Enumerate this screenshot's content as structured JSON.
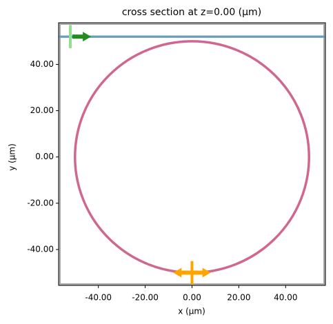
{
  "chart_data": {
    "type": "geometry",
    "title": "cross section at z=0.00 (µm)",
    "xlabel": "x (µm)",
    "ylabel": "y (µm)",
    "xlim": [
      -57,
      57
    ],
    "ylim": [
      -55.5,
      58
    ],
    "xticks": [
      {
        "value": -40,
        "label": "-40.00"
      },
      {
        "value": -20,
        "label": "-20.00"
      },
      {
        "value": 0,
        "label": "0.00"
      },
      {
        "value": 20,
        "label": "20.00"
      },
      {
        "value": 40,
        "label": "40.00"
      }
    ],
    "yticks": [
      {
        "value": -40,
        "label": "-40.00"
      },
      {
        "value": -20,
        "label": "-20.00"
      },
      {
        "value": 0,
        "label": "0.00"
      },
      {
        "value": 20,
        "label": "20.00"
      },
      {
        "value": 40,
        "label": "40.00"
      }
    ],
    "ring": {
      "cx": 0,
      "cy": 0,
      "radius": 50,
      "color": "#d0678e"
    },
    "waveguide": {
      "y": 52,
      "width": 1,
      "color": "#6b9dc0"
    },
    "source": {
      "x": -52,
      "y": 52,
      "span": 10,
      "arrow_length": 8,
      "color": "#90e090",
      "arrow_color": "#228b22"
    },
    "monitor": {
      "x": 0,
      "y": -50,
      "span": 10,
      "arrow_length": 8,
      "color": "#ffa500"
    }
  }
}
